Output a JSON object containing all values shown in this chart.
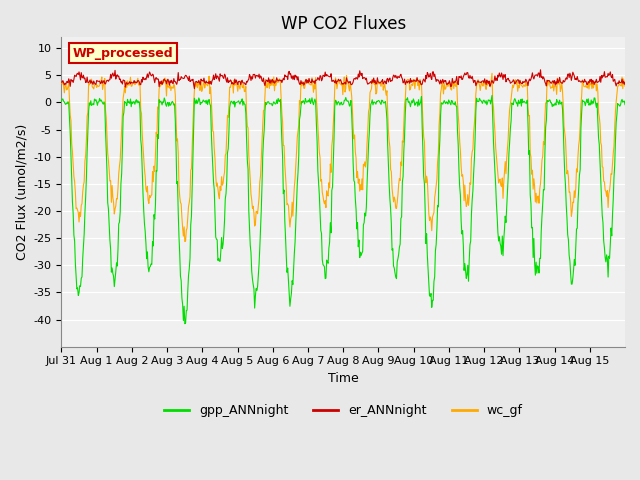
{
  "title": "WP CO2 Fluxes",
  "xlabel": "Time",
  "ylabel_text": "CO2 Flux (umol/m2/s)",
  "ylim": [
    -45,
    12
  ],
  "yticks": [
    -40,
    -35,
    -30,
    -25,
    -20,
    -15,
    -10,
    -5,
    0,
    5,
    10
  ],
  "bg_color": "#e8e8e8",
  "plot_bg_color": "#f0f0f0",
  "grid_color": "white",
  "line_colors": {
    "gpp": "#00dd00",
    "er": "#cc0000",
    "wc": "#ffaa00"
  },
  "legend_labels": [
    "gpp_ANNnight",
    "er_ANNnight",
    "wc_gf"
  ],
  "watermark_text": "WP_processed",
  "watermark_color": "#cc0000",
  "watermark_bg": "#ffffcc",
  "n_days": 16,
  "x_tick_labels": [
    "Jul 31",
    "Aug 1",
    "Aug 2",
    "Aug 3",
    "Aug 4",
    "Aug 5",
    "Aug 6",
    "Aug 7",
    "Aug 8",
    "Aug 9",
    "Aug 10",
    "Aug 11",
    "Aug 12",
    "Aug 13",
    "Aug 14",
    "Aug 15"
  ],
  "title_fontsize": 12,
  "axis_fontsize": 9,
  "tick_fontsize": 8
}
